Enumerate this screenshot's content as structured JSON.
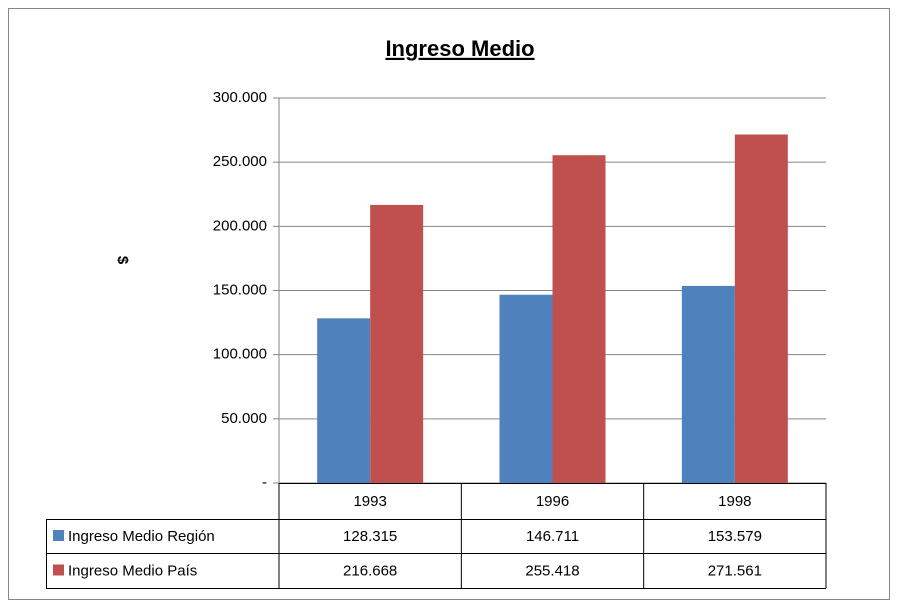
{
  "chart_data": {
    "type": "bar",
    "title": "Ingreso Medio",
    "y_label": "$",
    "categories": [
      "1993",
      "1996",
      "1998"
    ],
    "series": [
      {
        "name": "Ingreso Medio Región",
        "color": "#4f81bd",
        "values": [
          128315,
          146711,
          153579
        ],
        "value_labels": [
          "128.315",
          "146.711",
          "153.579"
        ]
      },
      {
        "name": "Ingreso Medio País",
        "color": "#c0504d",
        "values": [
          216668,
          255418,
          271561
        ],
        "value_labels": [
          "216.668",
          "255.418",
          "271.561"
        ]
      }
    ],
    "ylim": [
      0,
      300000
    ],
    "yticks": [
      {
        "value": 0,
        "label": "-"
      },
      {
        "value": 50000,
        "label": "50.000"
      },
      {
        "value": 100000,
        "label": "100.000"
      },
      {
        "value": 150000,
        "label": "150.000"
      },
      {
        "value": 200000,
        "label": "200.000"
      },
      {
        "value": 250000,
        "label": "250.000"
      },
      {
        "value": 300000,
        "label": "300.000"
      }
    ],
    "grid": true
  }
}
